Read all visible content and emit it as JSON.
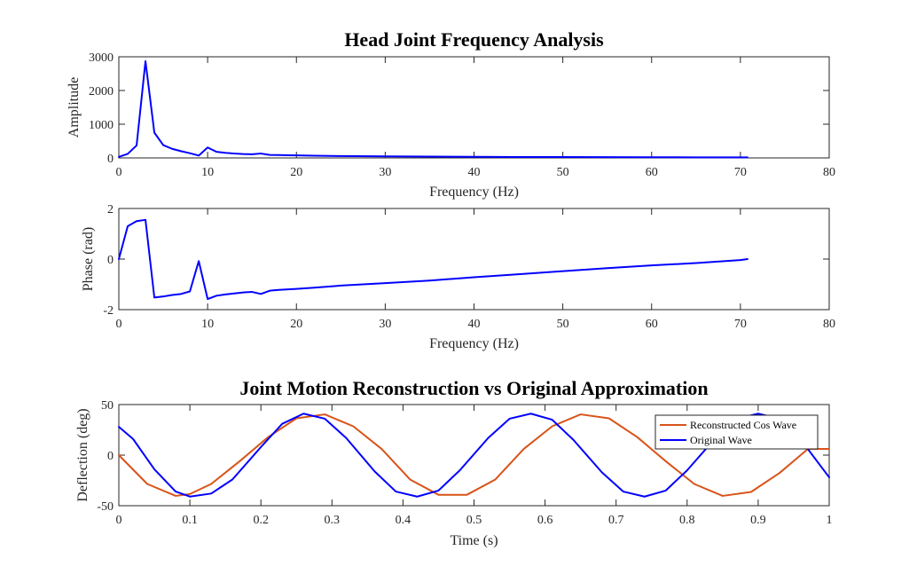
{
  "figure": {
    "title": "Head Joint Frequency Analysis",
    "colors": {
      "blue": "#0000FF",
      "orange": "#D95319",
      "axis": "#262626"
    }
  },
  "chart_data": [
    {
      "type": "line",
      "title": "Head Joint Frequency Analysis",
      "xlabel": "Frequency (Hz)",
      "ylabel": "Amplitude",
      "xlim": [
        0,
        80
      ],
      "ylim": [
        0,
        3000
      ],
      "xticks": [
        "0",
        "10",
        "20",
        "30",
        "40",
        "50",
        "60",
        "70",
        "80"
      ],
      "yticks": [
        "0",
        "1000",
        "2000",
        "3000"
      ],
      "series": [
        {
          "name": "Amplitude",
          "color": "#0000FF",
          "x": [
            0,
            1,
            2,
            3,
            4,
            5,
            6,
            7,
            8,
            9,
            10,
            11,
            12,
            13,
            14,
            15,
            16,
            17,
            18,
            19,
            20,
            22,
            25,
            30,
            35,
            40,
            45,
            50,
            55,
            60,
            65,
            70,
            70.8
          ],
          "y": [
            30,
            120,
            370,
            2870,
            750,
            380,
            270,
            200,
            140,
            70,
            310,
            180,
            150,
            130,
            115,
            110,
            130,
            90,
            85,
            80,
            75,
            65,
            55,
            45,
            38,
            32,
            28,
            25,
            22,
            20,
            18,
            17,
            16
          ]
        }
      ]
    },
    {
      "type": "line",
      "title": "",
      "xlabel": "Frequency (Hz)",
      "ylabel": "Phase (rad)",
      "xlim": [
        0,
        80
      ],
      "ylim": [
        -2,
        2
      ],
      "xticks": [
        "0",
        "10",
        "20",
        "30",
        "40",
        "50",
        "60",
        "70",
        "80"
      ],
      "yticks": [
        "-2",
        "0",
        "2"
      ],
      "series": [
        {
          "name": "Phase",
          "color": "#0000FF",
          "x": [
            0,
            1,
            2,
            3,
            4,
            5,
            6,
            7,
            8,
            9,
            10,
            11,
            12,
            13,
            14,
            15,
            16,
            17,
            18,
            20,
            22,
            25,
            30,
            35,
            40,
            45,
            50,
            55,
            60,
            65,
            70,
            70.8
          ],
          "y": [
            0,
            1.3,
            1.5,
            1.55,
            -1.52,
            -1.48,
            -1.42,
            -1.38,
            -1.28,
            -0.08,
            -1.58,
            -1.45,
            -1.4,
            -1.36,
            -1.32,
            -1.3,
            -1.38,
            -1.25,
            -1.22,
            -1.18,
            -1.13,
            -1.05,
            -0.95,
            -0.85,
            -0.72,
            -0.6,
            -0.48,
            -0.36,
            -0.25,
            -0.16,
            -0.04,
            0
          ]
        }
      ]
    },
    {
      "type": "line",
      "title": "Joint Motion Reconstruction vs Original Approximation",
      "xlabel": "Time (s)",
      "ylabel": "Deflection (deg)",
      "xlim": [
        0,
        1
      ],
      "ylim": [
        -50,
        50
      ],
      "xticks": [
        "0",
        "0.1",
        "0.2",
        "0.3",
        "0.4",
        "0.5",
        "0.6",
        "0.7",
        "0.8",
        "0.9",
        "1"
      ],
      "yticks": [
        "-50",
        "0",
        "50"
      ],
      "legend_location": "top-right",
      "series": [
        {
          "name": "Reconstructed Cos Wave",
          "color": "#D95319",
          "x": [
            0,
            0.04,
            0.08,
            0.1,
            0.13,
            0.17,
            0.21,
            0.25,
            0.29,
            0.33,
            0.37,
            0.41,
            0.45,
            0.49,
            0.53,
            0.57,
            0.61,
            0.65,
            0.69,
            0.73,
            0.77,
            0.81,
            0.85,
            0.89,
            0.93,
            0.97,
            1.0
          ],
          "y": [
            0,
            -28.5,
            -40.3,
            -38.5,
            -28.5,
            -6.1,
            17.7,
            36.4,
            40.3,
            28.5,
            6.1,
            -24.1,
            -39.2,
            -39.2,
            -24.1,
            6.1,
            28.5,
            40.3,
            36.4,
            17.7,
            -6.1,
            -28.5,
            -40.3,
            -36.4,
            -17.7,
            6.1,
            6.1
          ]
        },
        {
          "name": "Original Wave",
          "color": "#0000FF",
          "x": [
            0,
            0.02,
            0.05,
            0.08,
            0.1,
            0.13,
            0.16,
            0.2,
            0.23,
            0.26,
            0.29,
            0.32,
            0.36,
            0.39,
            0.42,
            0.45,
            0.48,
            0.52,
            0.55,
            0.58,
            0.61,
            0.64,
            0.68,
            0.71,
            0.74,
            0.77,
            0.8,
            0.84,
            0.87,
            0.9,
            0.93,
            0.97,
            1.0
          ],
          "y": [
            28.0,
            16.0,
            -14.0,
            -36.0,
            -41.0,
            -38.0,
            -24.0,
            8.0,
            31.0,
            41.0,
            36.0,
            17.0,
            -16.0,
            -36.0,
            -41.0,
            -35.0,
            -15.0,
            17.0,
            36.0,
            41.0,
            35.0,
            15.0,
            -17.0,
            -36.0,
            -41.0,
            -35.0,
            -15.0,
            17.0,
            36.0,
            41.0,
            36.0,
            6.0,
            -22.0
          ]
        }
      ]
    }
  ]
}
